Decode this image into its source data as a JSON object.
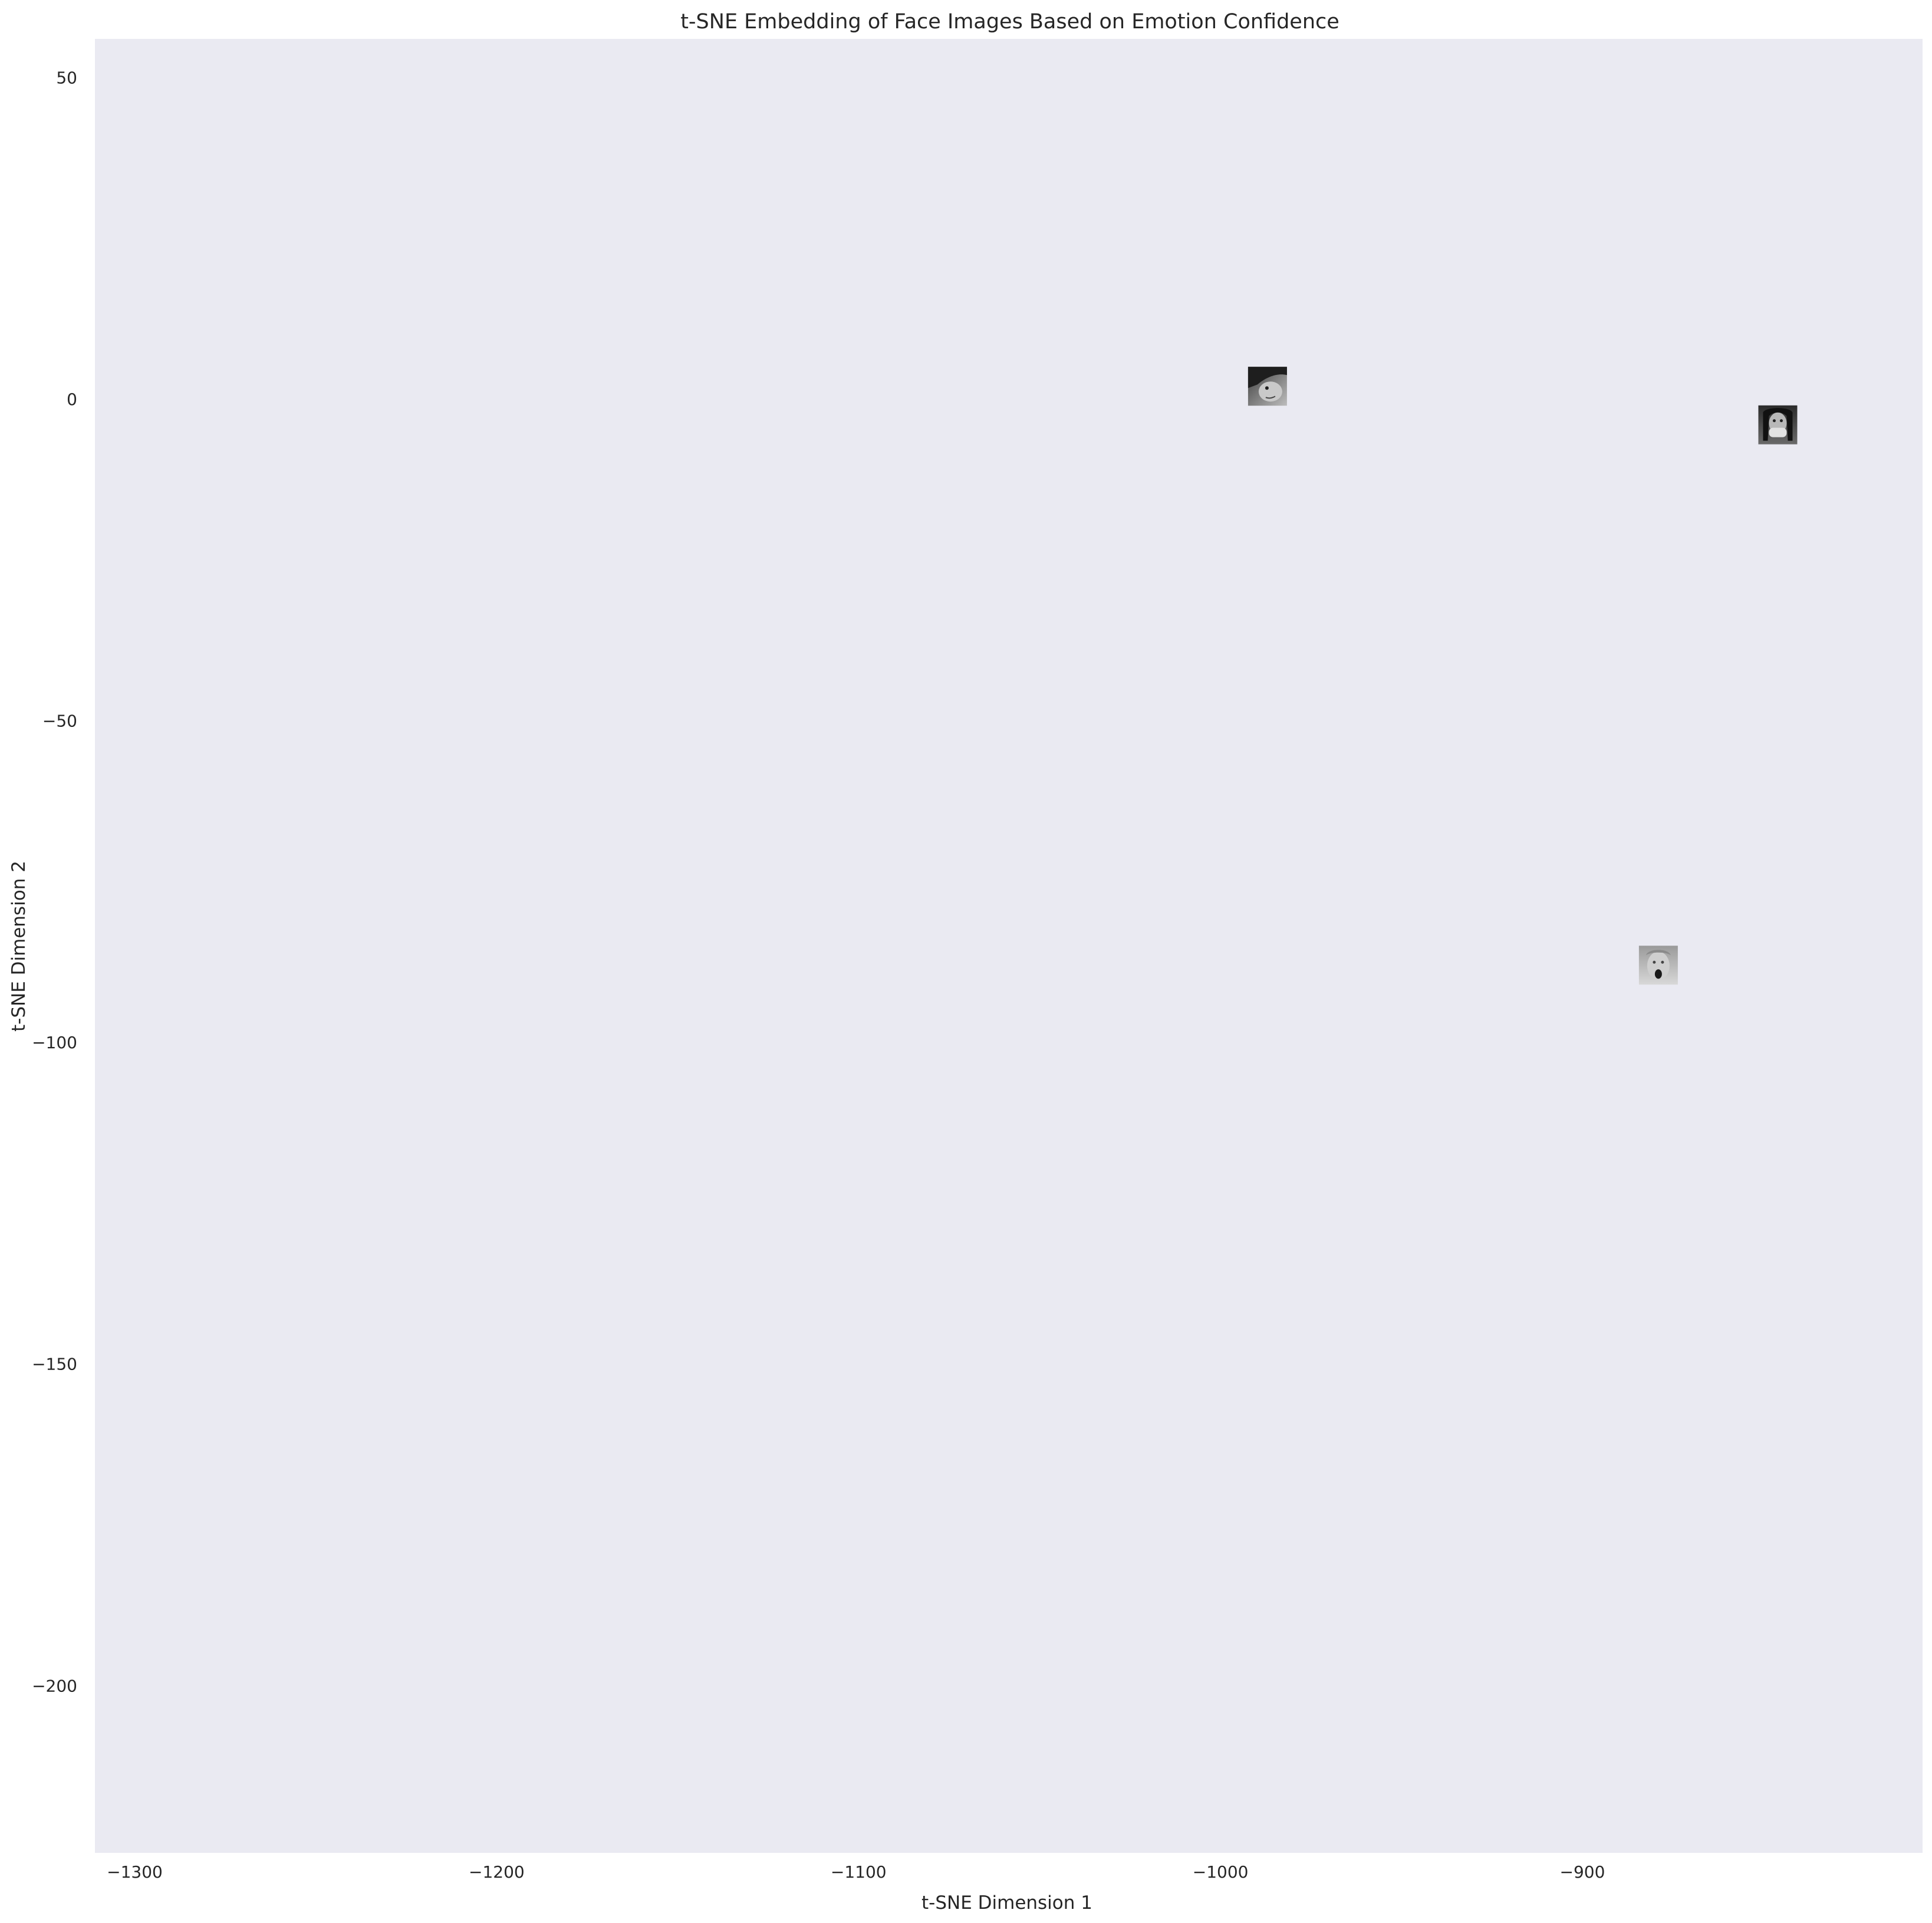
{
  "chart_data": {
    "type": "scatter",
    "title": "t-SNE Embedding of Face Images Based on Emotion Confidence",
    "xlabel": "t-SNE Dimension 1",
    "ylabel": "t-SNE Dimension 2",
    "xlim": [
      -1311,
      -806
    ],
    "ylim": [
      -226,
      56
    ],
    "xticks": [
      -1300,
      -1200,
      -1100,
      -1000,
      -900
    ],
    "xtick_labels": [
      "−1300",
      "−1200",
      "−1100",
      "−1000",
      "−900"
    ],
    "yticks": [
      50,
      0,
      -50,
      -100,
      -150,
      -200
    ],
    "ytick_labels": [
      "50",
      "0",
      "−50",
      "−100",
      "−150",
      "−200"
    ],
    "grid": false,
    "legend": "none",
    "plot_background": "#eaeaf2",
    "marker": "face-thumbnail-image",
    "points": [
      {
        "x": -987,
        "y": 2,
        "image": "face-thumbnail-profile-dark-hair"
      },
      {
        "x": -846,
        "y": -4,
        "image": "face-thumbnail-hands-over-mouth"
      },
      {
        "x": -879,
        "y": -88,
        "image": "face-thumbnail-open-mouth-surprised"
      }
    ]
  }
}
